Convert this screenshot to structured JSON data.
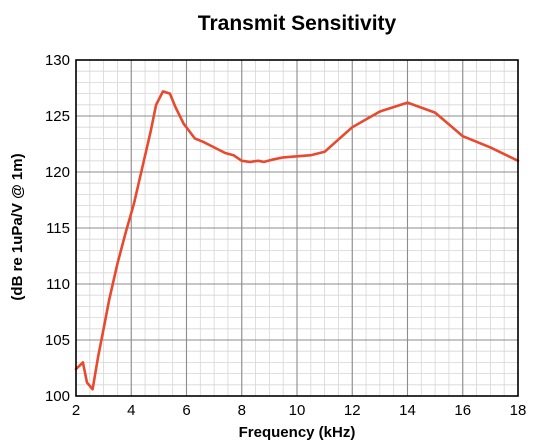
{
  "chart_data": {
    "type": "line",
    "title": "Transmit Sensitivity",
    "xlabel": "Frequency (kHz)",
    "ylabel": "(dB re 1uPa/V @ 1m)",
    "xlim": [
      2,
      18
    ],
    "ylim": [
      100,
      130
    ],
    "xticks": [
      2,
      4,
      6,
      8,
      10,
      12,
      14,
      16,
      18
    ],
    "yticks": [
      100,
      105,
      110,
      115,
      120,
      125,
      130
    ],
    "grid": true,
    "series": [
      {
        "color": "#e8492f",
        "x": [
          2.0,
          2.25,
          2.4,
          2.6,
          2.8,
          3.0,
          3.2,
          3.5,
          3.8,
          4.1,
          4.4,
          4.7,
          4.9,
          5.15,
          5.4,
          5.6,
          5.9,
          6.3,
          6.6,
          7.0,
          7.4,
          7.7,
          8.0,
          8.3,
          8.6,
          8.8,
          9.1,
          9.5,
          10.0,
          10.5,
          11.0,
          12.0,
          13.0,
          14.0,
          15.0,
          16.0,
          17.0,
          18.0
        ],
        "y": [
          102.4,
          103.0,
          101.2,
          100.6,
          103.5,
          106.0,
          108.6,
          111.8,
          114.6,
          117.2,
          120.4,
          123.6,
          126.0,
          127.2,
          127.0,
          125.8,
          124.3,
          123.0,
          122.7,
          122.2,
          121.7,
          121.5,
          121.0,
          120.9,
          121.0,
          120.9,
          121.1,
          121.3,
          121.4,
          121.5,
          121.8,
          124.0,
          125.4,
          126.2,
          125.3,
          123.2,
          122.2,
          121.0
        ]
      }
    ]
  }
}
